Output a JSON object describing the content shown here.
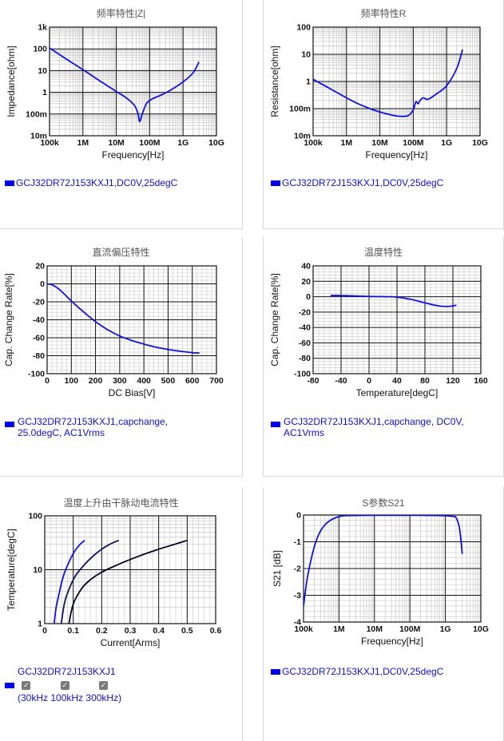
{
  "panels": [
    {
      "id": "impedance",
      "title": "频率特性|Z|",
      "legend": "GCJ32DR72J153KXJ1,DC0V,25degC",
      "chart_data": {
        "type": "line",
        "title": "频率特性|Z|",
        "xlabel": "Frequency[Hz]",
        "ylabel": "Impedance[ohm]",
        "x_scale": "log",
        "y_scale": "log",
        "xlim": [
          100000,
          10000000000
        ],
        "ylim": [
          0.01,
          1000
        ],
        "x_ticks": [
          100000,
          1000000,
          10000000,
          100000000,
          1000000000,
          10000000000
        ],
        "x_tick_labels": [
          "100k",
          "1M",
          "10M",
          "100M",
          "1G",
          "10G"
        ],
        "y_ticks": [
          0.01,
          0.1,
          1,
          10,
          100,
          1000
        ],
        "y_tick_labels": [
          "10m",
          "100m",
          "1",
          "10",
          "100",
          "1k"
        ],
        "grid": true,
        "series": [
          {
            "name": "GCJ32DR72J153KXJ1,DC0V,25degC",
            "color": "#1010e0",
            "x": [
              100000,
              300000,
              1000000,
              3000000,
              10000000,
              20000000,
              35000000,
              45000000,
              50000000,
              60000000,
              80000000,
              120000000,
              200000000,
              400000000,
              1000000000,
              2000000000,
              3000000000
            ],
            "y": [
              110,
              36,
              11,
              3.6,
              1.1,
              0.55,
              0.25,
              0.1,
              0.045,
              0.1,
              0.3,
              0.5,
              0.7,
              1.2,
              3,
              8,
              25
            ]
          }
        ]
      }
    },
    {
      "id": "resistance",
      "title": "频率特性R",
      "legend": "GCJ32DR72J153KXJ1,DC0V,25degC",
      "chart_data": {
        "type": "line",
        "title": "频率特性R",
        "xlabel": "Frequency[Hz]",
        "ylabel": "Resistance[ohm]",
        "x_scale": "log",
        "y_scale": "log",
        "xlim": [
          100000,
          10000000000
        ],
        "ylim": [
          0.01,
          100
        ],
        "x_ticks": [
          100000,
          1000000,
          10000000,
          100000000,
          1000000000,
          10000000000
        ],
        "x_tick_labels": [
          "100k",
          "1M",
          "10M",
          "100M",
          "1G",
          "10G"
        ],
        "y_ticks": [
          0.01,
          0.1,
          1,
          10,
          100
        ],
        "y_tick_labels": [
          "10m",
          "100m",
          "1",
          "10",
          "100"
        ],
        "grid": true,
        "series": [
          {
            "name": "GCJ32DR72J153KXJ1,DC0V,25degC",
            "color": "#1010e0",
            "x": [
              100000,
              200000,
              500000,
              1000000,
              2000000,
              5000000,
              10000000,
              20000000,
              40000000,
              70000000,
              100000000,
              120000000,
              140000000,
              160000000,
              200000000,
              250000000,
              300000000,
              500000000,
              1000000000,
              2000000000,
              3000000000
            ],
            "y": [
              1.2,
              0.75,
              0.4,
              0.25,
              0.16,
              0.1,
              0.075,
              0.06,
              0.052,
              0.055,
              0.09,
              0.18,
              0.15,
              0.2,
              0.25,
              0.22,
              0.23,
              0.35,
              0.7,
              3,
              15
            ]
          }
        ]
      }
    },
    {
      "id": "dcbias",
      "title": "直流偏压特性",
      "legend": "GCJ32DR72J153KXJ1,capchange, 25.0degC, AC1Vrms",
      "legend_lines": [
        "GCJ32DR72J153KXJ1,capchange,",
        "25.0degC, AC1Vrms"
      ],
      "chart_data": {
        "type": "line",
        "title": "直流偏压特性",
        "xlabel": "DC Bias[V]",
        "ylabel": "Cap. Change Rate[%]",
        "xlim": [
          0,
          700
        ],
        "ylim": [
          -100,
          20
        ],
        "x_ticks": [
          0,
          100,
          200,
          300,
          400,
          500,
          600,
          700
        ],
        "y_ticks": [
          20,
          0,
          -20,
          -40,
          -60,
          -80,
          -100
        ],
        "grid": true,
        "series": [
          {
            "name": "GCJ32DR72J153KXJ1,capchange, 25.0degC, AC1Vrms",
            "color": "#1010e0",
            "x": [
              0,
              20,
              50,
              100,
              150,
              200,
              250,
              300,
              350,
              400,
              450,
              500,
              550,
              600,
              630
            ],
            "y": [
              0,
              -1,
              -6,
              -19,
              -31,
              -42,
              -51,
              -58,
              -63,
              -67,
              -70.5,
              -73,
              -75,
              -76.5,
              -77
            ]
          }
        ]
      }
    },
    {
      "id": "temperature",
      "title": "温度特性",
      "legend": "GCJ32DR72J153KXJ1,capchange, DC0V, AC1Vrms",
      "legend_lines": [
        "GCJ32DR72J153KXJ1,capchange, DC0V,",
        "AC1Vrms"
      ],
      "chart_data": {
        "type": "line",
        "title": "温度特性",
        "xlabel": "Temperature[degC]",
        "ylabel": "Cap. Change Rate[%]",
        "xlim": [
          -80,
          160
        ],
        "ylim": [
          -100,
          40
        ],
        "x_ticks": [
          -80,
          -40,
          0,
          40,
          80,
          120,
          160
        ],
        "y_ticks": [
          40,
          20,
          0,
          -20,
          -40,
          -60,
          -80,
          -100
        ],
        "grid": true,
        "series": [
          {
            "name": "GCJ32DR72J153KXJ1,capchange, DC0V, AC1Vrms",
            "color": "#1010e0",
            "x": [
              -55,
              -40,
              -20,
              0,
              25,
              40,
              60,
              80,
              100,
              115,
              125
            ],
            "y": [
              1.5,
              1.5,
              1,
              0.3,
              0,
              -0.5,
              -3.5,
              -8,
              -12,
              -12.5,
              -11
            ]
          }
        ]
      }
    },
    {
      "id": "temprise",
      "title": "温度上升由干脉动电流特性",
      "legend": "GCJ32DR72J153KXJ1",
      "checkboxes": [
        {
          "label": "30kHz",
          "checked": true
        },
        {
          "label": "100kHz",
          "checked": true
        },
        {
          "label": "300kHz",
          "checked": true
        }
      ],
      "checkbox_line": "( 30kHz  100kHz  300kHz)",
      "chart_data": {
        "type": "line",
        "title": "温度上升由干脉动电流特性",
        "xlabel": "Current[Arms]",
        "ylabel": "Temperature[degC]",
        "y_scale": "log",
        "xlim": [
          0,
          0.6
        ],
        "ylim": [
          1,
          100
        ],
        "x_ticks": [
          0,
          0.1,
          0.2,
          0.3,
          0.4,
          0.5,
          0.6
        ],
        "y_ticks": [
          1,
          10,
          100
        ],
        "grid": true,
        "series": [
          {
            "name": "30kHz",
            "color": "#1010e0",
            "x": [
              0.033,
              0.04,
              0.05,
              0.06,
              0.07,
              0.08,
              0.1,
              0.12,
              0.14
            ],
            "y": [
              1,
              2,
              3.5,
              6,
              9,
              12,
              20,
              28,
              35
            ]
          },
          {
            "name": "100kHz",
            "color": "#101060",
            "x": [
              0.058,
              0.07,
              0.09,
              0.11,
              0.14,
              0.17,
              0.2,
              0.23,
              0.26
            ],
            "y": [
              1,
              2.5,
              5,
              8,
              12.5,
              18,
              24,
              30,
              35
            ]
          },
          {
            "name": "300kHz",
            "color": "#000020",
            "x": [
              0.085,
              0.1,
              0.13,
              0.16,
              0.2,
              0.25,
              0.3,
              0.35,
              0.4,
              0.45,
              0.5
            ],
            "y": [
              1,
              2.3,
              4.5,
              6.5,
              9,
              12,
              15.5,
              19.5,
              24,
              29,
              35
            ]
          }
        ]
      }
    },
    {
      "id": "s21",
      "title": "S参数S21",
      "legend": "GCJ32DR72J153KXJ1,DC0V,25degC",
      "chart_data": {
        "type": "line",
        "title": "S参数S21",
        "xlabel": "Frequency[Hz]",
        "ylabel": "S21 [dB]",
        "x_scale": "log",
        "xlim": [
          100000,
          10000000000
        ],
        "ylim": [
          -4,
          0
        ],
        "x_ticks": [
          100000,
          1000000,
          10000000,
          100000000,
          1000000000,
          10000000000
        ],
        "x_tick_labels": [
          "100k",
          "1M",
          "10M",
          "100M",
          "1G",
          "10G"
        ],
        "y_ticks": [
          0,
          -1,
          -2,
          -3,
          -4
        ],
        "grid": true,
        "series": [
          {
            "name": "GCJ32DR72J153KXJ1,DC0V,25degC",
            "color": "#1010e0",
            "x": [
              100000,
              130000,
              200000,
              300000,
              500000,
              1000000,
              2000000,
              10000000,
              100000000,
              800000000,
              1500000000,
              2000000000,
              2500000000,
              3000000000
            ],
            "y": [
              -3.4,
              -2.3,
              -1.2,
              -0.6,
              -0.25,
              -0.06,
              -0.02,
              -0.01,
              -0.01,
              -0.02,
              -0.05,
              -0.1,
              -0.5,
              -1.45
            ]
          }
        ]
      }
    }
  ]
}
